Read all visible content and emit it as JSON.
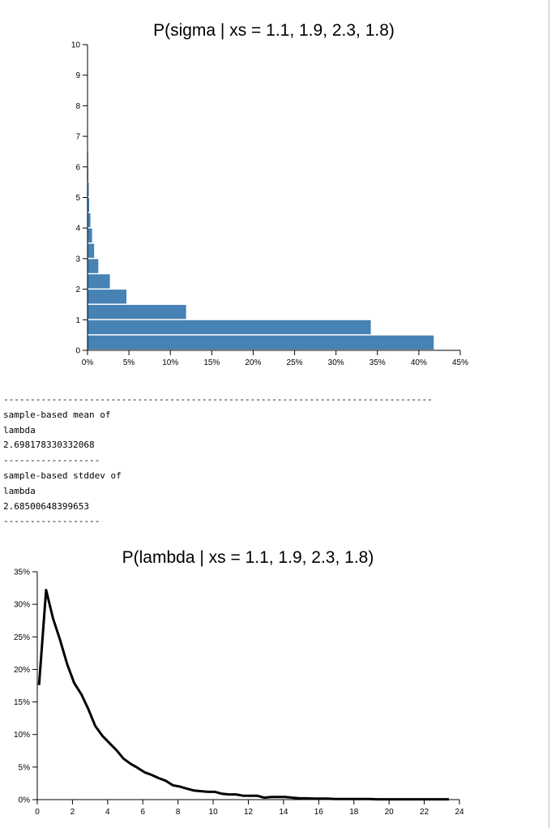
{
  "chart_data": [
    {
      "type": "bar",
      "orientation": "horizontal",
      "title": "P(sigma | xs = 1.1, 1.9, 2.3, 1.8)",
      "xlabel": "",
      "ylabel": "",
      "x_format": "percent",
      "xlim": [
        0,
        45
      ],
      "ylim": [
        0,
        10
      ],
      "x_ticks": [
        "0%",
        "5%",
        "10%",
        "15%",
        "20%",
        "25%",
        "30%",
        "35%",
        "40%",
        "45%"
      ],
      "y_ticks": [
        "0",
        "1",
        "2",
        "3",
        "4",
        "5",
        "6",
        "7",
        "8",
        "9",
        "10"
      ],
      "bin_width": 0.5,
      "bins_start": [
        0,
        0.5,
        1.0,
        1.5,
        2.0,
        2.5,
        3.0,
        3.5,
        4.0,
        4.5,
        5.0,
        5.5,
        6.0
      ],
      "values": [
        41.8,
        34.2,
        11.9,
        4.7,
        2.7,
        1.3,
        0.8,
        0.55,
        0.35,
        0.2,
        0.15,
        0.1,
        0.05
      ],
      "color": "#4682b4",
      "grid": false
    },
    {
      "type": "line",
      "title": "P(lambda | xs = 1.1, 1.9, 2.3, 1.8)",
      "xlabel": "",
      "ylabel": "",
      "y_format": "percent",
      "xlim": [
        0,
        24
      ],
      "ylim": [
        0,
        35
      ],
      "x_ticks": [
        "0",
        "2",
        "4",
        "6",
        "8",
        "10",
        "12",
        "14",
        "16",
        "18",
        "20",
        "22",
        "24"
      ],
      "y_ticks": [
        "0%",
        "5%",
        "10%",
        "15%",
        "20%",
        "25%",
        "30%",
        "35%"
      ],
      "x": [
        0.1,
        0.5,
        0.9,
        1.3,
        1.7,
        2.1,
        2.5,
        2.9,
        3.3,
        3.7,
        4.1,
        4.5,
        4.9,
        5.3,
        5.7,
        6.1,
        6.5,
        6.9,
        7.3,
        7.7,
        8.1,
        8.5,
        8.9,
        9.3,
        9.7,
        10.1,
        10.5,
        10.9,
        11.3,
        11.7,
        12.1,
        12.5,
        12.9,
        13.3,
        13.7,
        14.1,
        14.5,
        14.9,
        15.3,
        15.7,
        16.1,
        16.5,
        16.9,
        17.3,
        17.7,
        18.1,
        18.5,
        18.9,
        19.3,
        19.7,
        20.1,
        20.5,
        20.9,
        21.3,
        21.7,
        22.1,
        22.5,
        22.9,
        23.4
      ],
      "y": [
        17.6,
        32.2,
        27.8,
        24.5,
        20.8,
        17.9,
        16.2,
        13.9,
        11.3,
        9.8,
        8.7,
        7.6,
        6.3,
        5.5,
        4.9,
        4.2,
        3.8,
        3.3,
        2.9,
        2.2,
        2.0,
        1.7,
        1.4,
        1.3,
        1.2,
        1.2,
        0.9,
        0.8,
        0.8,
        0.6,
        0.6,
        0.6,
        0.3,
        0.4,
        0.4,
        0.4,
        0.3,
        0.2,
        0.2,
        0.15,
        0.15,
        0.15,
        0.1,
        0.1,
        0.1,
        0.1,
        0.1,
        0.1,
        0.05,
        0.05,
        0.05,
        0.05,
        0.05,
        0.05,
        0.05,
        0.05,
        0.05,
        0.05,
        0.05
      ],
      "color": "#000000",
      "grid": false
    }
  ],
  "text_output": {
    "separator_long": "--------------------------------------------------------------------------------",
    "mean_label_1": "sample-based mean of",
    "mean_label_2": "lambda",
    "mean_value": "2.698178330332068",
    "separator_short_1": "------------------",
    "stddev_label_1": "sample-based stddev of",
    "stddev_label_2": "lambda",
    "stddev_value": "2.68500648399653",
    "separator_short_2": "------------------"
  }
}
